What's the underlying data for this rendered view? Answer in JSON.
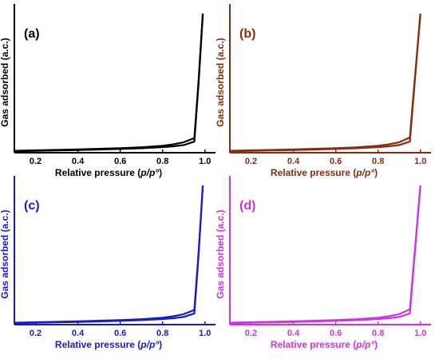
{
  "chart_data": [
    {
      "type": "line",
      "panel_label": "(a)",
      "color": "#000000",
      "xlabel": "Relative pressure (p/p°)",
      "ylabel": "Gas adsorbed (a.c.)",
      "xlim": [
        0.1,
        1.05
      ],
      "ylim": [
        0,
        100
      ],
      "x_ticks": [
        "0.2",
        "0.4",
        "0.6",
        "0.8",
        "1.0"
      ],
      "y_ticks": [],
      "grid": false,
      "series": [
        {
          "role": "adsorption",
          "x": [
            0.1,
            0.2,
            0.3,
            0.4,
            0.5,
            0.6,
            0.7,
            0.8,
            0.85,
            0.9,
            0.95,
            0.97,
            0.99
          ],
          "y": [
            1.0,
            1.3,
            1.6,
            1.9,
            2.3,
            2.7,
            3.2,
            4.0,
            4.6,
            5.5,
            8.0,
            50.0,
            100.0
          ]
        },
        {
          "role": "desorption",
          "x": [
            0.99,
            0.97,
            0.95,
            0.9,
            0.85,
            0.8,
            0.7,
            0.6,
            0.5,
            0.4,
            0.3,
            0.2,
            0.1
          ],
          "y": [
            100.0,
            52.0,
            10.5,
            7.5,
            6.0,
            5.0,
            3.9,
            3.3,
            2.8,
            2.4,
            2.0,
            1.7,
            1.4
          ]
        }
      ]
    },
    {
      "type": "line",
      "panel_label": "(b)",
      "color": "#8b2a10",
      "xlabel": "Relative pressure (p/p°)",
      "ylabel": "Gas adsorbed (a.c.)",
      "xlim": [
        0.1,
        1.05
      ],
      "ylim": [
        0,
        100
      ],
      "x_ticks": [
        "0.2",
        "0.4",
        "0.6",
        "0.8",
        "1.0"
      ],
      "y_ticks": [],
      "grid": false,
      "series": [
        {
          "role": "adsorption",
          "x": [
            0.1,
            0.2,
            0.3,
            0.4,
            0.5,
            0.6,
            0.7,
            0.8,
            0.85,
            0.9,
            0.95,
            0.97,
            1.0
          ],
          "y": [
            1.0,
            1.3,
            1.6,
            1.9,
            2.3,
            2.7,
            3.2,
            4.0,
            4.6,
            5.5,
            8.0,
            45.0,
            100.0
          ]
        },
        {
          "role": "desorption",
          "x": [
            1.0,
            0.97,
            0.95,
            0.9,
            0.85,
            0.8,
            0.7,
            0.6,
            0.5,
            0.4,
            0.3,
            0.2,
            0.1
          ],
          "y": [
            100.0,
            47.0,
            11.0,
            7.5,
            6.0,
            5.0,
            3.9,
            3.3,
            2.8,
            2.4,
            2.0,
            1.7,
            1.4
          ]
        }
      ]
    },
    {
      "type": "line",
      "panel_label": "(c)",
      "color": "#1a1acc",
      "xlabel": "Relative pressure (p/p°)",
      "ylabel": "Gas adsorbed (a.c.)",
      "xlim": [
        0.1,
        1.05
      ],
      "ylim": [
        0,
        100
      ],
      "x_ticks": [
        "0.2",
        "0.4",
        "0.6",
        "0.8",
        "1.0"
      ],
      "y_ticks": [],
      "grid": false,
      "series": [
        {
          "role": "adsorption",
          "x": [
            0.1,
            0.2,
            0.3,
            0.4,
            0.5,
            0.6,
            0.7,
            0.8,
            0.85,
            0.9,
            0.95,
            0.97,
            0.99
          ],
          "y": [
            1.0,
            1.3,
            1.6,
            1.9,
            2.3,
            2.7,
            3.2,
            4.0,
            4.6,
            5.5,
            8.0,
            50.0,
            100.0
          ]
        },
        {
          "role": "desorption",
          "x": [
            0.99,
            0.97,
            0.95,
            0.9,
            0.85,
            0.8,
            0.7,
            0.6,
            0.5,
            0.4,
            0.3,
            0.2,
            0.1
          ],
          "y": [
            100.0,
            52.0,
            10.5,
            7.5,
            6.0,
            5.0,
            3.9,
            3.3,
            2.8,
            2.4,
            2.0,
            1.7,
            1.4
          ]
        }
      ]
    },
    {
      "type": "line",
      "panel_label": "(d)",
      "color": "#cc33e6",
      "xlabel": "Relative pressure (p/p°)",
      "ylabel": "Gas adsorbed (a.c.)",
      "xlim": [
        0.1,
        1.05
      ],
      "ylim": [
        0,
        100
      ],
      "x_ticks": [
        "0.2",
        "0.4",
        "0.6",
        "0.8",
        "1.0"
      ],
      "y_ticks": [],
      "grid": false,
      "series": [
        {
          "role": "adsorption",
          "x": [
            0.1,
            0.2,
            0.3,
            0.4,
            0.5,
            0.6,
            0.7,
            0.8,
            0.85,
            0.9,
            0.95,
            0.97,
            1.0
          ],
          "y": [
            1.0,
            1.3,
            1.6,
            1.9,
            2.3,
            2.7,
            3.2,
            4.0,
            4.6,
            5.5,
            8.0,
            45.0,
            100.0
          ]
        },
        {
          "role": "desorption",
          "x": [
            1.0,
            0.97,
            0.95,
            0.9,
            0.85,
            0.8,
            0.7,
            0.6,
            0.5,
            0.4,
            0.3,
            0.2,
            0.1
          ],
          "y": [
            100.0,
            47.0,
            11.0,
            7.5,
            6.0,
            5.0,
            3.9,
            3.3,
            2.8,
            2.4,
            2.0,
            1.7,
            1.4
          ]
        }
      ]
    }
  ]
}
